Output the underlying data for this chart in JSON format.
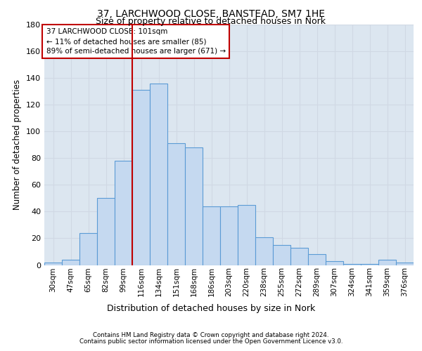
{
  "title1": "37, LARCHWOOD CLOSE, BANSTEAD, SM7 1HE",
  "title2": "Size of property relative to detached houses in Nork",
  "xlabel": "Distribution of detached houses by size in Nork",
  "ylabel": "Number of detached properties",
  "categories": [
    "30sqm",
    "47sqm",
    "65sqm",
    "82sqm",
    "99sqm",
    "116sqm",
    "134sqm",
    "151sqm",
    "168sqm",
    "186sqm",
    "203sqm",
    "220sqm",
    "238sqm",
    "255sqm",
    "272sqm",
    "289sqm",
    "307sqm",
    "324sqm",
    "341sqm",
    "359sqm",
    "376sqm"
  ],
  "values": [
    2,
    4,
    24,
    50,
    78,
    131,
    136,
    91,
    88,
    44,
    44,
    45,
    21,
    15,
    13,
    8,
    3,
    1,
    1,
    4,
    2
  ],
  "bar_color": "#c5d9f0",
  "bar_edge_color": "#5b9bd5",
  "grid_color": "#d0d8e4",
  "background_color": "#dce6f0",
  "vline_x": 4.5,
  "vline_color": "#c00000",
  "annotation_text": "37 LARCHWOOD CLOSE: 101sqm\n← 11% of detached houses are smaller (85)\n89% of semi-detached houses are larger (671) →",
  "annotation_box_color": "white",
  "annotation_box_edgecolor": "#c00000",
  "footer1": "Contains HM Land Registry data © Crown copyright and database right 2024.",
  "footer2": "Contains public sector information licensed under the Open Government Licence v3.0.",
  "ylim": [
    0,
    180
  ],
  "yticks": [
    0,
    20,
    40,
    60,
    80,
    100,
    120,
    140,
    160,
    180
  ],
  "title1_fontsize": 10,
  "title2_fontsize": 9
}
